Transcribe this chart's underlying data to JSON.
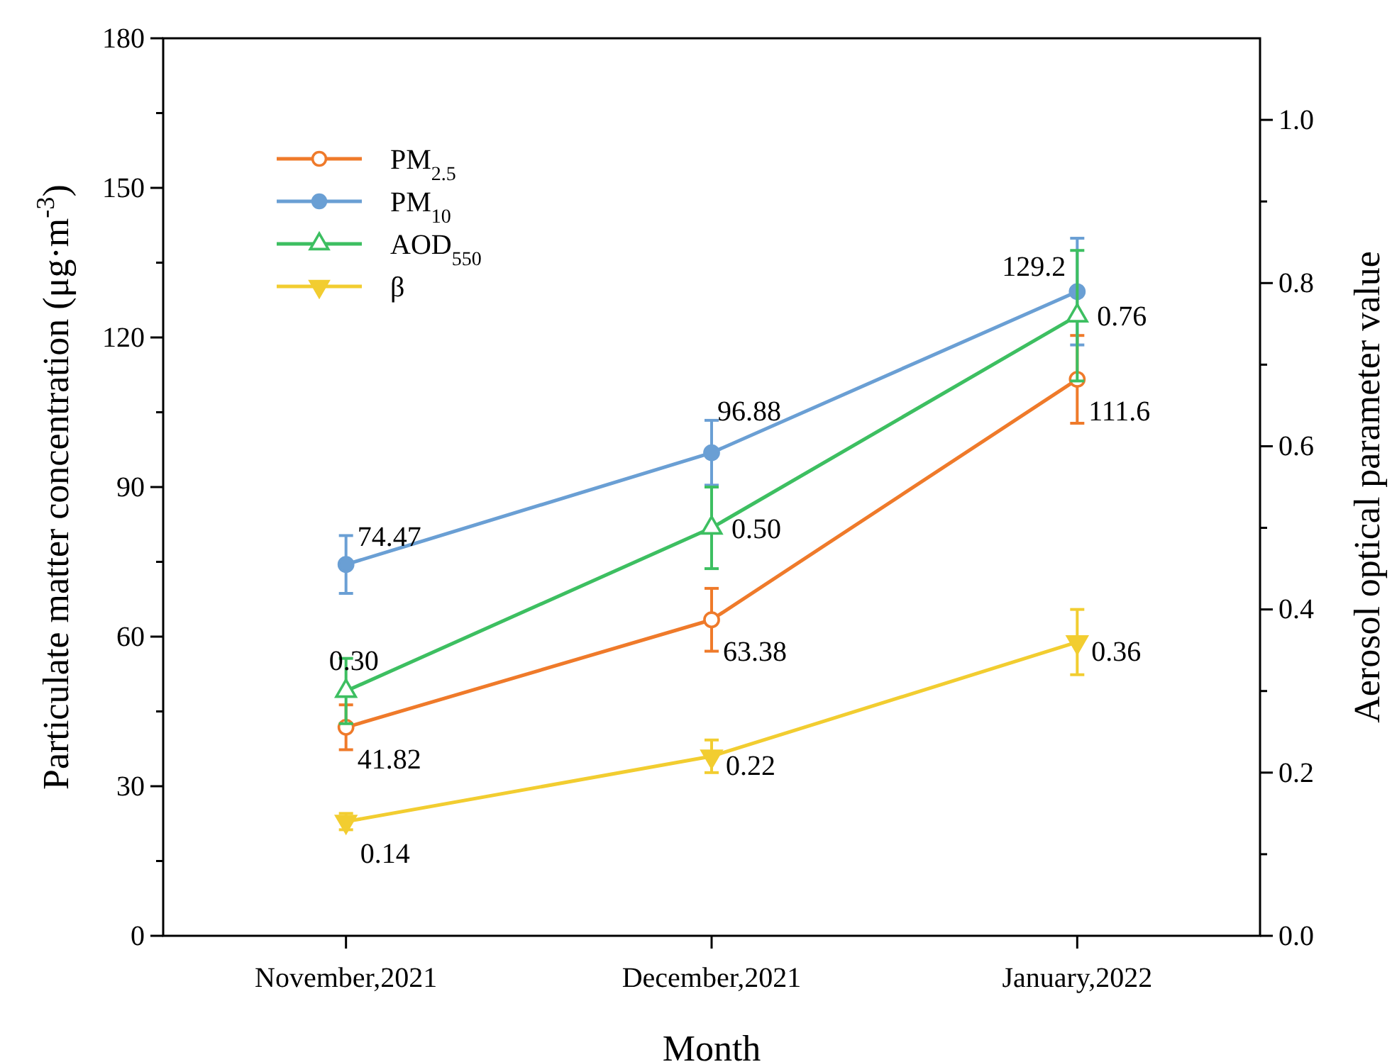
{
  "chart_data": {
    "type": "line",
    "xlabel": "Month",
    "ylabel": "Particulate matter concentration (μg·m$^{-3}$)",
    "y2label": "Aerosol optical parameter value",
    "categories": [
      "November,2021",
      "December,2021",
      "January,2022"
    ],
    "ylim": [
      0,
      180
    ],
    "yticks": [
      0,
      {
        "value": 15,
        "label": null
      },
      30,
      {
        "value": 45,
        "label": null
      },
      60,
      {
        "value": 75,
        "label": null
      },
      90,
      {
        "value": 105,
        "label": null
      },
      120,
      {
        "value": 135,
        "label": null
      },
      150,
      {
        "value": 165,
        "label": null
      },
      180
    ],
    "y2lim": [
      0,
      1.1
    ],
    "y2ticks": [
      {
        "value": 0,
        "label": "0.0"
      },
      {
        "value": 0.1,
        "label": null
      },
      0.2,
      {
        "value": 0.3,
        "label": null
      },
      0.4,
      {
        "value": 0.5,
        "label": null
      },
      0.6,
      {
        "value": 0.7,
        "label": null
      },
      0.8,
      {
        "value": 0.9,
        "label": null
      },
      {
        "value": 1.0,
        "label": "1.0"
      }
    ],
    "legend": "top left",
    "grid": false,
    "series": [
      {
        "name": "PM$_{2.5}$",
        "color": "#ef7a2a",
        "marker": "circle",
        "values": [
          41.82,
          63.38,
          111.6
        ],
        "errors": [
          4.5,
          6.3,
          8.8
        ],
        "value_labels": [
          "41.82",
          "63.38",
          "111.6"
        ]
      },
      {
        "name": "PM$_{10}$",
        "color": "#6a9fd4",
        "marker": "circle",
        "values": [
          74.47,
          96.88,
          129.2
        ],
        "errors": [
          5.8,
          6.5,
          10.7
        ],
        "value_labels": [
          "74.47",
          "96.88",
          "129.2"
        ]
      },
      {
        "name": "AOD$_{550}$",
        "color": "#3dbf61",
        "marker": "triangle",
        "axis": "y2",
        "values": [
          0.3,
          0.5,
          0.76
        ],
        "errors": [
          0.04,
          0.05,
          0.08
        ],
        "value_labels": [
          "0.30",
          "0.50",
          "0.76"
        ]
      },
      {
        "name": "β",
        "color": "#f2cd30",
        "marker": "triangle-down",
        "axis": "y2",
        "values": [
          0.14,
          0.22,
          0.36
        ],
        "errors": [
          0.01,
          0.02,
          0.04
        ],
        "value_labels": [
          "0.14",
          "0.22",
          "0.36"
        ]
      }
    ]
  }
}
